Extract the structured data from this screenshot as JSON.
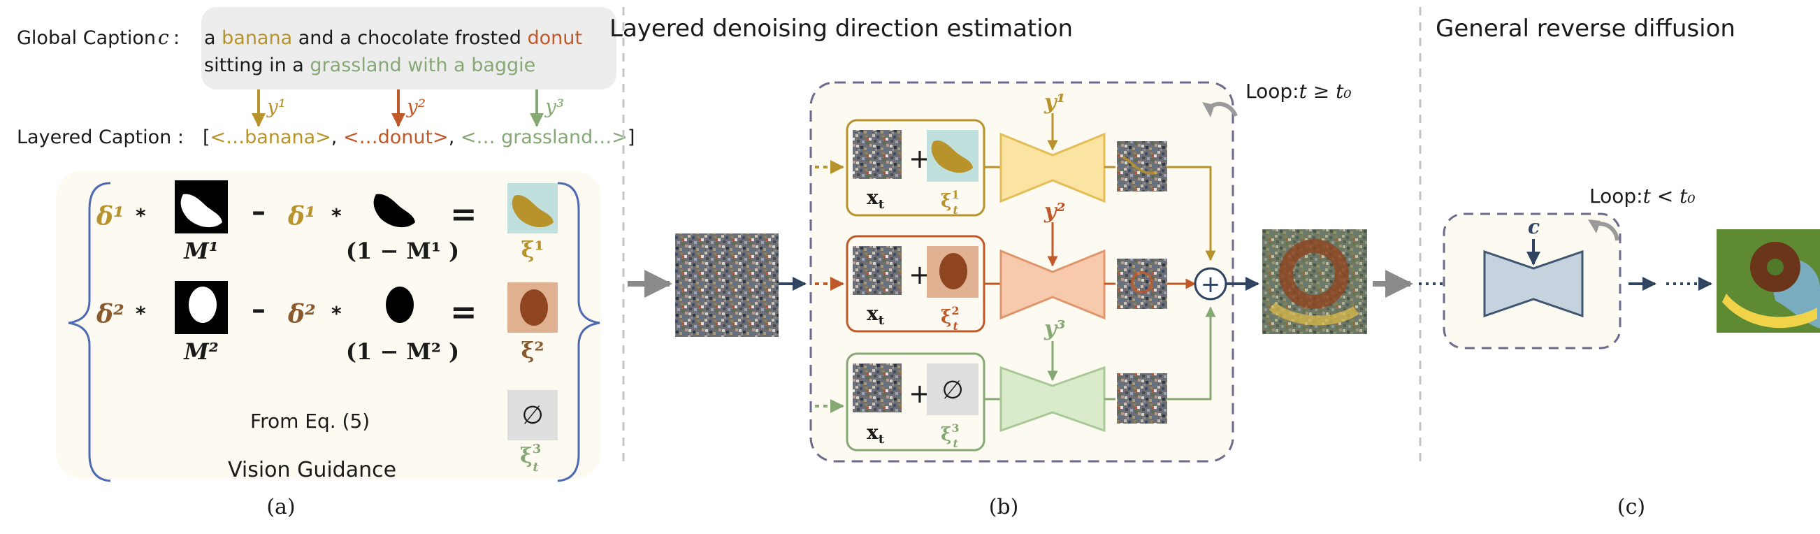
{
  "colors": {
    "banana": "#b8922a",
    "donut": "#c0592a",
    "grass": "#86a874",
    "navy": "#2f4460",
    "panel_bg": "#fdfaf1",
    "caption_bg": "#ededed",
    "dash": "#6e6a8e",
    "brace": "#4d6ab3"
  },
  "panel_a": {
    "global_caption_label": "Global Caption",
    "global_caption_symbol": "c",
    "caption_parts": {
      "p1": "a",
      "banana": "banana",
      "p2": "and a chocolate frosted",
      "donut": "donut",
      "line2_pre": "sitting in a",
      "grass": "grassland with a baggie"
    },
    "y_labels": [
      "y¹",
      "y²",
      "y³"
    ],
    "layered_caption_label": "Layered Caption :",
    "layered_items": [
      "<…banana>",
      "<…donut>",
      "<… grassland…>"
    ],
    "rows": [
      {
        "delta": "δ¹",
        "M": "M¹",
        "oneminus": "(1 − M¹ )",
        "xi": "ξ¹"
      },
      {
        "delta": "δ²",
        "M": "M²",
        "oneminus": "(1 − M² )",
        "xi": "ξ²"
      }
    ],
    "star": "*",
    "minus": "–",
    "equals": "=",
    "from_eq": "From Eq. (5)",
    "xi3": "ξ",
    "xi3_sub": "t",
    "xi3_sup": "3",
    "empty_set": "∅",
    "vision_guidance": "Vision Guidance",
    "sublabel": "(a)"
  },
  "panel_b": {
    "title": "Layered denoising direction estimation",
    "loop": "Loop:",
    "loop_cond": "t ≥ t₀",
    "x_label": "x",
    "x_sub": "t",
    "plus": "+",
    "xi_base": "ξ",
    "xi_sub": "t",
    "xi_sups": [
      "1",
      "2",
      "3"
    ],
    "y_labels": [
      "y¹",
      "y²",
      "y³"
    ],
    "sum_symbol": "+",
    "sublabel": "(b)"
  },
  "panel_c": {
    "title": "General reverse diffusion",
    "loop": "Loop:",
    "loop_cond": "t < t₀",
    "c_label": "c",
    "sublabel": "(c)"
  }
}
